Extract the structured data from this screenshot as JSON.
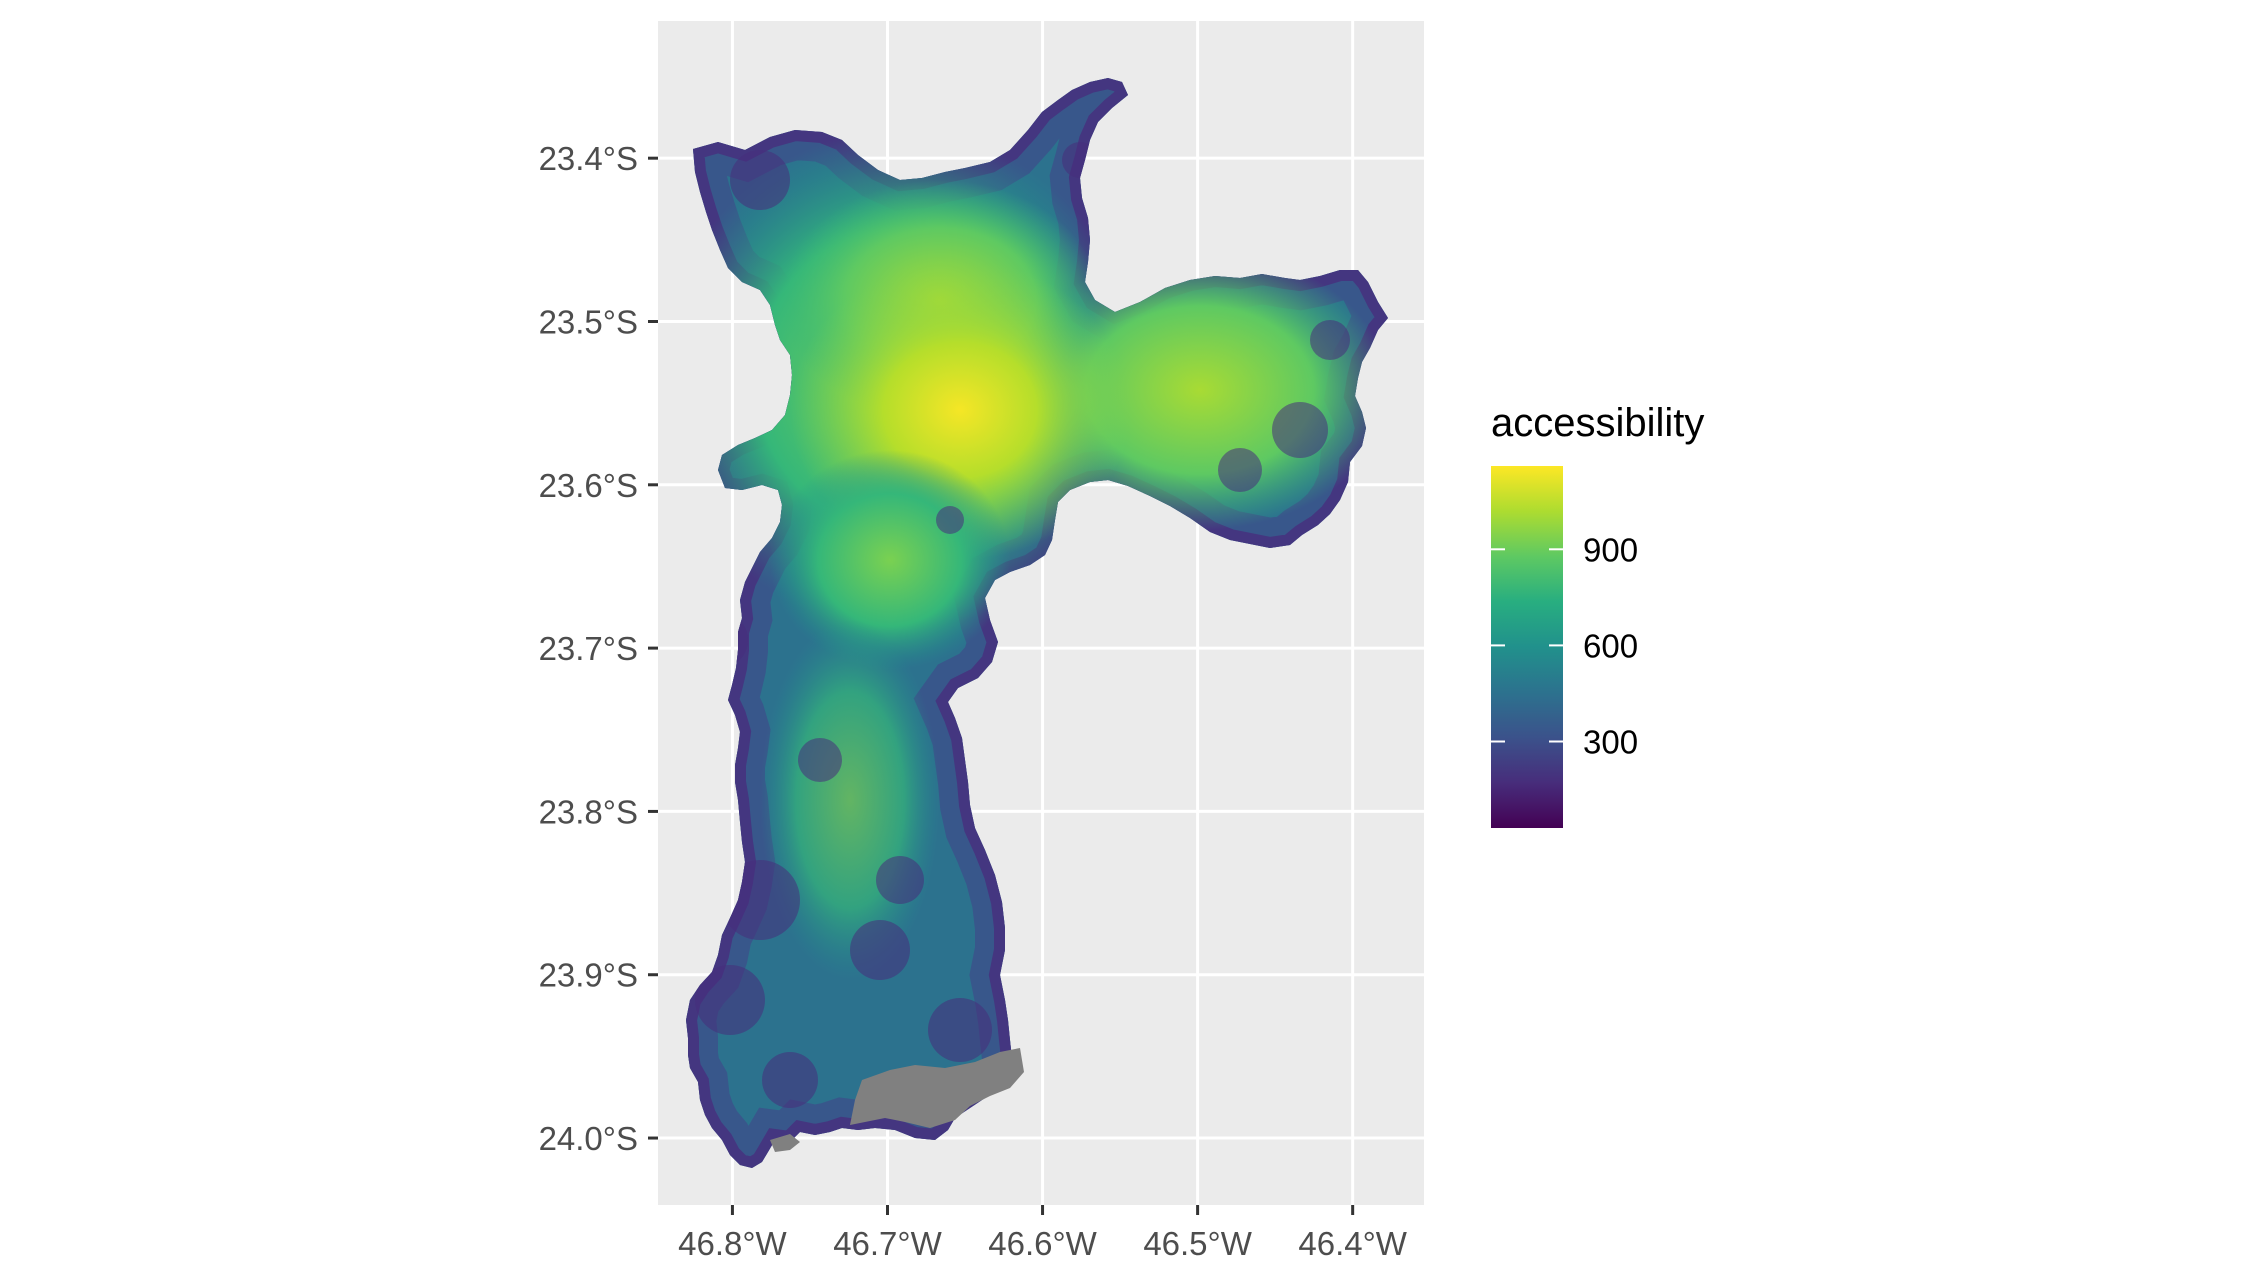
{
  "map": {
    "x_axis": {
      "ticks": [
        "46.8°W",
        "46.7°W",
        "46.6°W",
        "46.5°W",
        "46.4°W"
      ],
      "values": [
        -46.8,
        -46.7,
        -46.6,
        -46.5,
        -46.4
      ]
    },
    "y_axis": {
      "ticks": [
        "23.4°S",
        "23.5°S",
        "23.6°S",
        "23.7°S",
        "23.8°S",
        "23.9°S",
        "24.0°S"
      ],
      "values": [
        -23.4,
        -23.5,
        -23.6,
        -23.7,
        -23.8,
        -23.9,
        -24.0
      ]
    },
    "x_range": [
      -46.848,
      -46.354
    ],
    "y_range": [
      -23.316,
      -24.041
    ],
    "panel_color": "#ebebeb",
    "grid_color": "#ffffff",
    "na_color": "#808080",
    "legend": {
      "title": "accessibility",
      "breaks": [
        "300",
        "600",
        "900"
      ],
      "break_values": [
        300,
        600,
        900
      ],
      "range": [
        30,
        1160
      ],
      "palette": "viridis",
      "colors": [
        "#440154",
        "#3b528b",
        "#21918c",
        "#5ec962",
        "#fde725"
      ]
    }
  }
}
